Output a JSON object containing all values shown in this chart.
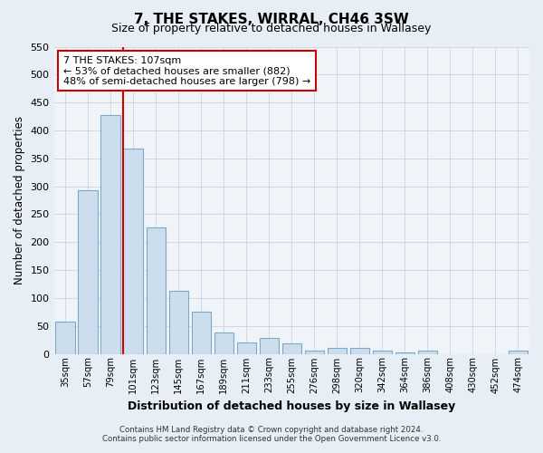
{
  "title": "7, THE STAKES, WIRRAL, CH46 3SW",
  "subtitle": "Size of property relative to detached houses in Wallasey",
  "xlabel": "Distribution of detached houses by size in Wallasey",
  "ylabel": "Number of detached properties",
  "categories": [
    "35sqm",
    "57sqm",
    "79sqm",
    "101sqm",
    "123sqm",
    "145sqm",
    "167sqm",
    "189sqm",
    "211sqm",
    "233sqm",
    "255sqm",
    "276sqm",
    "298sqm",
    "320sqm",
    "342sqm",
    "364sqm",
    "386sqm",
    "408sqm",
    "430sqm",
    "452sqm",
    "474sqm"
  ],
  "values": [
    57,
    293,
    428,
    368,
    226,
    113,
    76,
    38,
    20,
    29,
    18,
    5,
    11,
    11,
    5,
    2,
    5,
    0,
    0,
    0,
    6
  ],
  "bar_color": "#ccdded",
  "bar_edge_color": "#7aaac8",
  "vline_color": "#cc0000",
  "annotation_text": "7 THE STAKES: 107sqm\n← 53% of detached houses are smaller (882)\n48% of semi-detached houses are larger (798) →",
  "annotation_box_color": "#ffffff",
  "annotation_box_edge": "#cc0000",
  "ylim": [
    0,
    550
  ],
  "yticks": [
    0,
    50,
    100,
    150,
    200,
    250,
    300,
    350,
    400,
    450,
    500,
    550
  ],
  "bg_color": "#e8eef5",
  "plot_bg_color": "#f0f4f8",
  "grid_color": "#c8d4e0",
  "footer_line1": "Contains HM Land Registry data © Crown copyright and database right 2024.",
  "footer_line2": "Contains public sector information licensed under the Open Government Licence v3.0."
}
